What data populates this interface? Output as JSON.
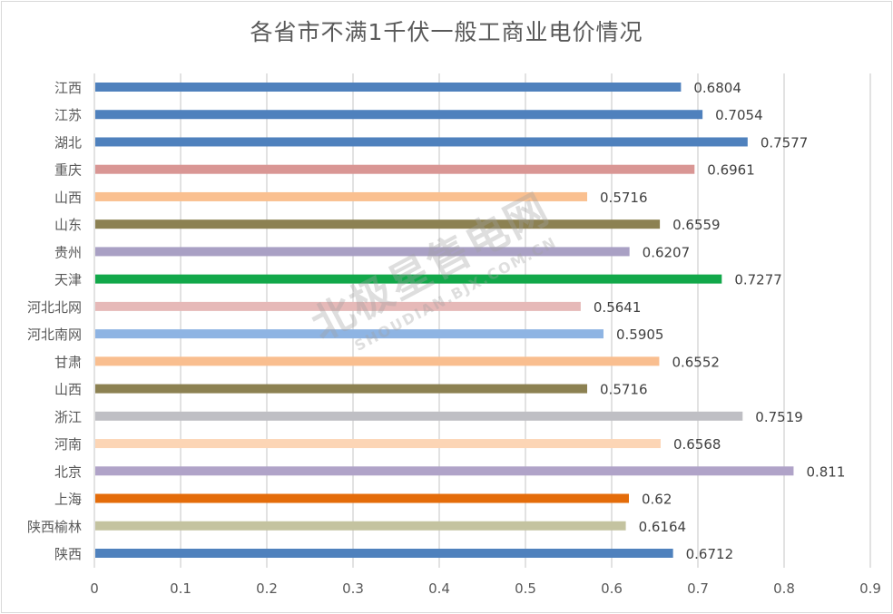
{
  "chart_data": {
    "type": "bar",
    "orientation": "horizontal",
    "title": "各省市不满1千伏一般工商业电价情况",
    "xlabel": "",
    "ylabel": "",
    "xlim": [
      0,
      0.9
    ],
    "xticks": [
      "0",
      "0.1",
      "0.2",
      "0.3",
      "0.4",
      "0.5",
      "0.6",
      "0.7",
      "0.8",
      "0.9"
    ],
    "grid": "vertical",
    "legend": "none",
    "categories": [
      "江西",
      "江苏",
      "湖北",
      "重庆",
      "山西",
      "山东",
      "贵州",
      "天津",
      "河北北网",
      "河北南网",
      "甘肃",
      "山西",
      "浙江",
      "河南",
      "北京",
      "上海",
      "陕西榆林",
      "陕西"
    ],
    "values": [
      0.6804,
      0.7054,
      0.7577,
      0.6961,
      0.5716,
      0.6559,
      0.6207,
      0.7277,
      0.5641,
      0.5905,
      0.6552,
      0.5716,
      0.7519,
      0.6568,
      0.811,
      0.62,
      0.6164,
      0.6712
    ],
    "data_labels": [
      "0.6804",
      "0.7054",
      "0.7577",
      "0.6961",
      "0.5716",
      "0.6559",
      "0.6207",
      "0.7277",
      "0.5641",
      "0.5905",
      "0.6552",
      "0.5716",
      "0.7519",
      "0.6568",
      "0.811",
      "0.62",
      "0.6164",
      "0.6712"
    ],
    "colors": [
      "#4f81bd",
      "#4f81bd",
      "#4f81bd",
      "#d99694",
      "#fac090",
      "#8c8152",
      "#a9a0c4",
      "#12a84a",
      "#e6b9b8",
      "#8eb4e3",
      "#f9be8f",
      "#8c8152",
      "#bfbfc4",
      "#fcd5b5",
      "#b0a3c8",
      "#e46c0a",
      "#c4c3a0",
      "#4f81bd"
    ]
  },
  "watermark": {
    "main": "北极星售电网",
    "sub": "SHOUDIAN.BJX.COM.CN"
  }
}
